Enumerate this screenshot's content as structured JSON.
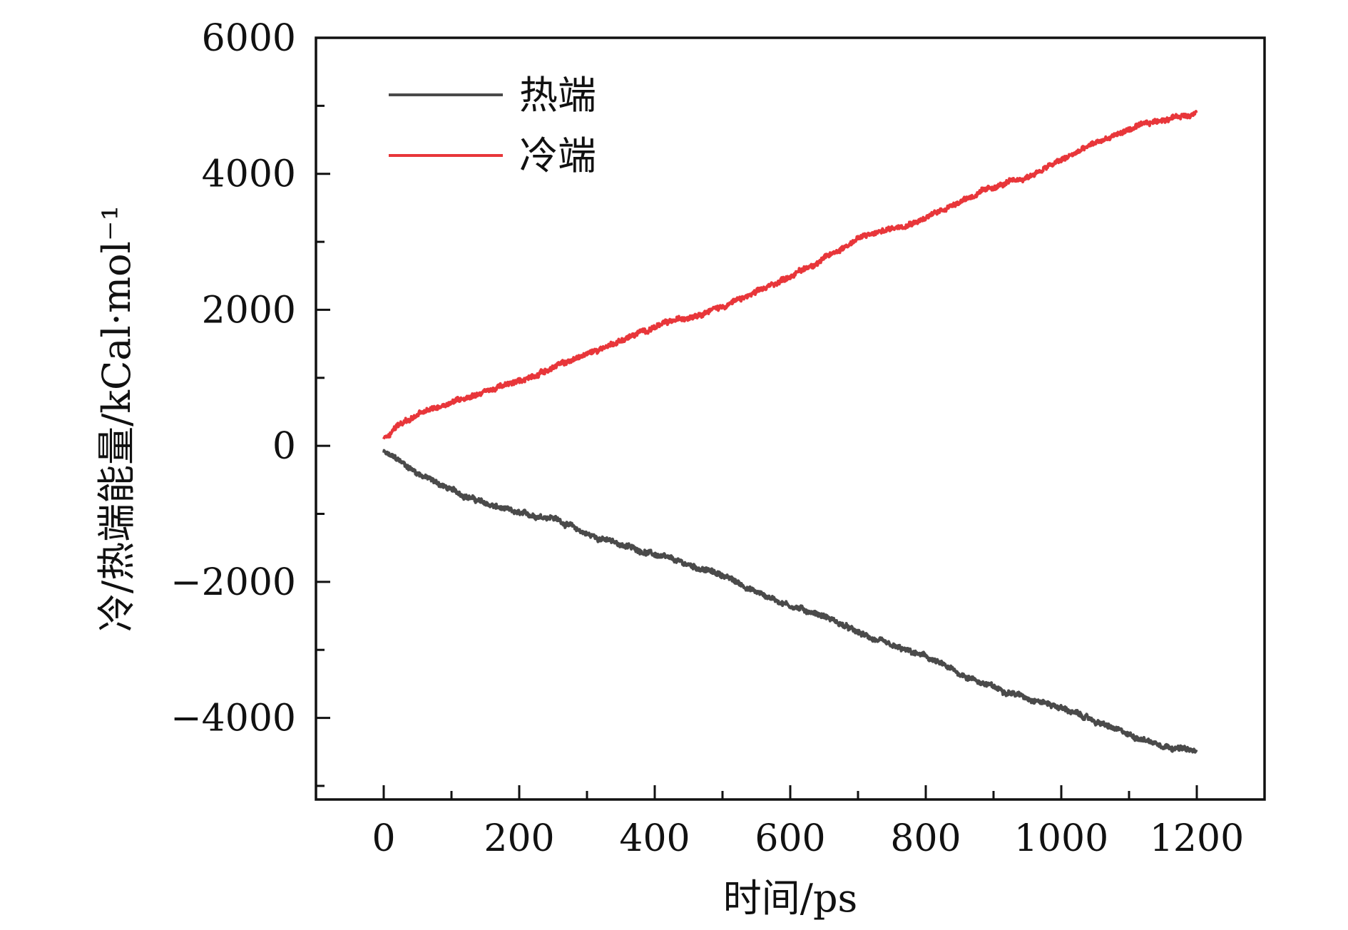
{
  "chart_data": {
    "type": "line",
    "title": "",
    "xlabel": "时间/ps",
    "ylabel": "冷/热端能量/kCal·mol⁻¹",
    "xlim": [
      -100,
      1300
    ],
    "ylim": [
      -5200,
      6000
    ],
    "x_ticks": [
      0,
      200,
      400,
      600,
      800,
      1000,
      1200
    ],
    "x_tick_labels": [
      "0",
      "200",
      "400",
      "600",
      "800",
      "1000",
      "1200"
    ],
    "x_minor_ticks": [
      100,
      300,
      500,
      700,
      900,
      1100
    ],
    "y_ticks": [
      -4000,
      -2000,
      0,
      2000,
      4000,
      6000
    ],
    "y_tick_labels": [
      "−4000",
      "−2000",
      "0",
      "2000",
      "4000",
      "6000"
    ],
    "y_minor_ticks": [
      -5000,
      -3000,
      -1000,
      1000,
      3000,
      5000
    ],
    "grid": false,
    "legend_position": "top-left",
    "series": [
      {
        "name": "热端",
        "color": "#4a4a4a",
        "x": [
          0,
          20,
          50,
          100,
          150,
          200,
          250,
          300,
          350,
          400,
          450,
          500,
          550,
          600,
          650,
          700,
          750,
          800,
          850,
          900,
          950,
          1000,
          1050,
          1100,
          1150,
          1200
        ],
        "y": [
          -100,
          -200,
          -400,
          -650,
          -850,
          -1000,
          -1050,
          -1300,
          -1450,
          -1600,
          -1750,
          -1900,
          -2150,
          -2350,
          -2500,
          -2750,
          -2950,
          -3100,
          -3350,
          -3550,
          -3700,
          -3850,
          -4050,
          -4250,
          -4400,
          -4500
        ]
      },
      {
        "name": "冷端",
        "color": "#e8363a",
        "x": [
          0,
          20,
          50,
          100,
          150,
          200,
          250,
          300,
          350,
          400,
          450,
          500,
          550,
          600,
          650,
          700,
          750,
          800,
          850,
          900,
          950,
          1000,
          1050,
          1100,
          1150,
          1200
        ],
        "y": [
          100,
          300,
          450,
          650,
          800,
          950,
          1150,
          1350,
          1550,
          1750,
          1900,
          2050,
          2250,
          2500,
          2750,
          3050,
          3200,
          3350,
          3600,
          3800,
          3950,
          4200,
          4450,
          4650,
          4800,
          4900
        ]
      }
    ]
  }
}
